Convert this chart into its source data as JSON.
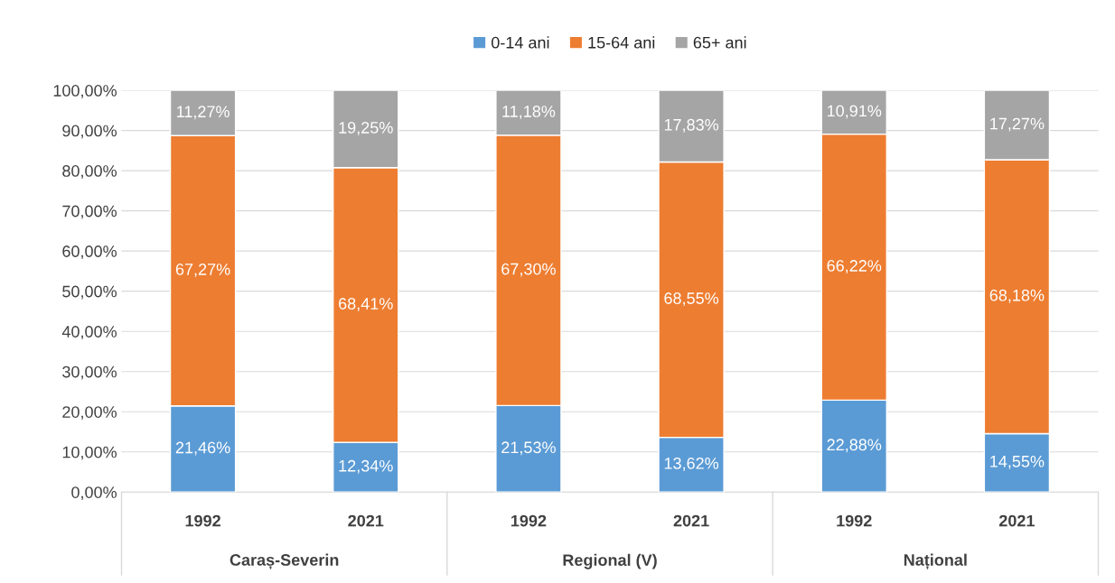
{
  "chart_data": {
    "type": "bar",
    "stacked": true,
    "categories": [
      "1992",
      "2021",
      "1992",
      "2021",
      "1992",
      "2021"
    ],
    "annotations": [
      "Caraș-Severin",
      "Regional (V)",
      "Național"
    ],
    "series": [
      {
        "name": "0-14 ani",
        "color": "#5b9bd5",
        "values": [
          21.46,
          12.34,
          21.53,
          13.62,
          22.88,
          14.55
        ],
        "value_labels": [
          "21,46%",
          "12,34%",
          "21,53%",
          "13,62%",
          "22,88%",
          "14,55%"
        ]
      },
      {
        "name": "15-64 ani",
        "color": "#ed7d31",
        "values": [
          67.27,
          68.41,
          67.3,
          68.55,
          66.22,
          68.18
        ],
        "value_labels": [
          "67,27%",
          "68,41%",
          "67,30%",
          "68,55%",
          "66,22%",
          "68,18%"
        ]
      },
      {
        "name": "65+ ani",
        "color": "#a5a5a5",
        "values": [
          11.27,
          19.25,
          11.18,
          17.83,
          10.91,
          17.27
        ],
        "value_labels": [
          "11,27%",
          "19,25%",
          "11,18%",
          "17,83%",
          "10,91%",
          "17,27%"
        ]
      }
    ],
    "ylim": [
      0,
      100
    ],
    "yticks": [
      {
        "value": 0,
        "label": "0,00%"
      },
      {
        "value": 10,
        "label": "10,00%"
      },
      {
        "value": 20,
        "label": "20,00%"
      },
      {
        "value": 30,
        "label": "30,00%"
      },
      {
        "value": 40,
        "label": "40,00%"
      },
      {
        "value": 50,
        "label": "50,00%"
      },
      {
        "value": 60,
        "label": "60,00%"
      },
      {
        "value": 70,
        "label": "70,00%"
      },
      {
        "value": 80,
        "label": "80,00%"
      },
      {
        "value": 90,
        "label": "90,00%"
      },
      {
        "value": 100,
        "label": "100,00%"
      }
    ],
    "grid": "y",
    "legend": "top"
  }
}
